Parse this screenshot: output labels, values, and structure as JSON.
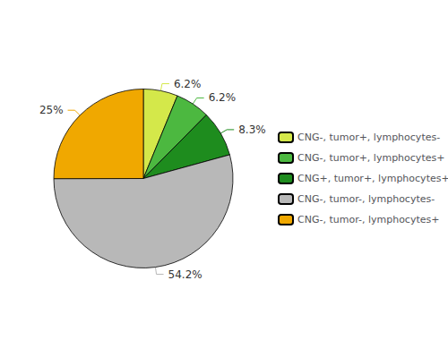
{
  "chart_data": {
    "type": "pie",
    "categories": [
      "CNG-, tumor+, lymphocytes-",
      "CNG-, tumor+, lymphocytes+",
      "CNG+, tumor+, lymphocytes+",
      "CNG-, tumor-, lymphocytes-",
      "CNG-, tumor-, lymphocytes+"
    ],
    "values": [
      6.2,
      6.2,
      8.3,
      54.2,
      25.0
    ],
    "value_labels": [
      "6.2%",
      "6.2%",
      "8.3%",
      "54.2%",
      "25%"
    ],
    "colors": [
      "#d4e84a",
      "#4cb840",
      "#1e8c1e",
      "#b8b8b8",
      "#f0a800"
    ],
    "data_labels": true,
    "legend": "right"
  }
}
